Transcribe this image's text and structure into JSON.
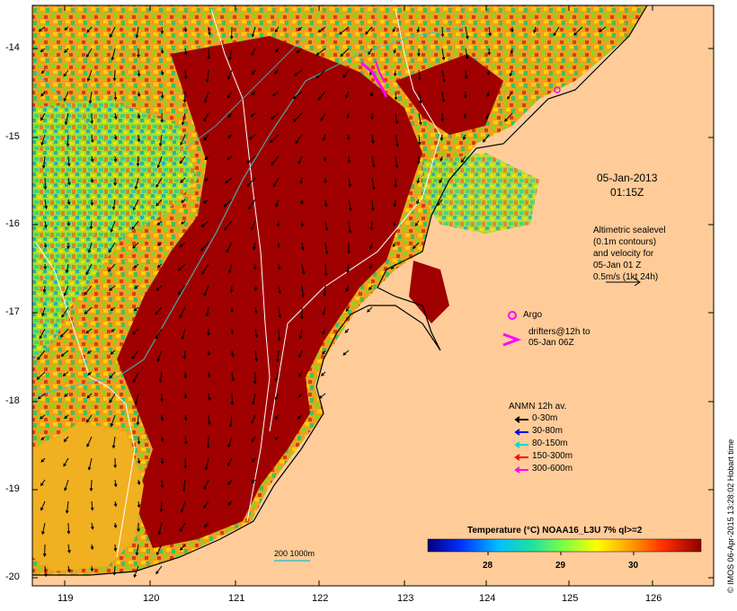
{
  "map": {
    "x_axis_labels": [
      "119",
      "120",
      "121",
      "122",
      "123",
      "124",
      "125",
      "126"
    ],
    "y_axis_labels": [
      "-14",
      "-15",
      "-16",
      "-17",
      "-18",
      "-19",
      "-20"
    ],
    "date_line1": "05-Jan-2013",
    "date_line2": "01:15Z",
    "altimetry_lines": [
      "Altimetric sealevel",
      "(0.1m contours)",
      "and velocity for",
      "05-Jan 01 Z",
      "0.5m/s (1kt 24h)"
    ],
    "argo_label": "Argo",
    "drifter_lines": [
      "drifters@12h to",
      "05-Jan 06Z"
    ],
    "anmn_title": "ANMN 12h av.",
    "anmn_items": [
      {
        "label": "0-30m",
        "color": "#000000"
      },
      {
        "label": "30-80m",
        "color": "#0000ff"
      },
      {
        "label": "80-150m",
        "color": "#00d8d8"
      },
      {
        "label": "150-300m",
        "color": "#ff0000"
      },
      {
        "label": "300-600m",
        "color": "#ff00ff"
      }
    ],
    "colorbar_title": "Temperature (°C) NOAA16_L3U 7% ql>=2",
    "colorbar_ticks": [
      "28",
      "29",
      "30"
    ],
    "scale_label": "200  1000m",
    "credit": "© IMOS 06-Apr-2015 13:28:02 Hobart time",
    "colors": {
      "land": "#ffcc99",
      "hot": "#a00000",
      "coast": "#000000",
      "contour": "#ffffff",
      "bathy": "#40c0c0",
      "argo": "#ff00ff"
    }
  }
}
